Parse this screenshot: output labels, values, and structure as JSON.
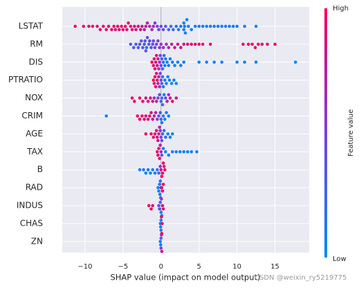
{
  "chart_data": {
    "type": "beeswarm",
    "xlabel": "SHAP value (impact on model output)",
    "xlim": [
      -13,
      19.5
    ],
    "xticks": [
      {
        "value": -10,
        "label": "−10"
      },
      {
        "value": -5,
        "label": "−5"
      },
      0,
      5,
      10,
      15
    ],
    "grid": true,
    "colorbar": {
      "label": "Feature value",
      "high": "High",
      "low": "Low",
      "colormap": [
        "#008bfb",
        "#7a3fe4",
        "#ff0052"
      ]
    },
    "annotation": "CSDN @weixin_ry5219775",
    "series": [
      {
        "name": "LSTAT",
        "values": [
          -11.3,
          -10.2,
          -9.5,
          -9,
          -8.4,
          -8,
          -7.6,
          -7.2,
          -6.9,
          -6.5,
          -6.2,
          -6,
          -5.7,
          -5.5,
          -5.2,
          -5,
          -4.7,
          -4.5,
          -4.3,
          -4,
          -3.8,
          -3.5,
          -3.3,
          -3,
          -2.7,
          -2.5,
          -2.2,
          -2,
          -1.8,
          -1.5,
          -1.2,
          -1,
          -0.8,
          -0.5,
          -0.3,
          0,
          0.3,
          0.6,
          1,
          1.3,
          1.6,
          2,
          2.3,
          2.6,
          3,
          3,
          3.1,
          3.2,
          3.4,
          3.6,
          4,
          4.5,
          5,
          5.5,
          6,
          6.5,
          7,
          7.5,
          8,
          8.5,
          9,
          9.5,
          10,
          11,
          12.5
        ],
        "feature_values": [
          0.95,
          0.95,
          0.9,
          0.95,
          0.9,
          0.92,
          0.95,
          0.88,
          0.9,
          0.92,
          0.95,
          0.9,
          0.88,
          0.85,
          0.92,
          0.9,
          0.9,
          0.88,
          0.85,
          0.9,
          0.86,
          0.85,
          0.88,
          0.8,
          0.82,
          0.78,
          0.8,
          0.75,
          0.7,
          0.72,
          0.65,
          0.6,
          0.55,
          0.5,
          0.5,
          0.45,
          0.4,
          0.35,
          0.3,
          0.25,
          0.2,
          0.2,
          0.15,
          0.12,
          0.1,
          0.05,
          0.08,
          0.1,
          0.05,
          0.1,
          0.08,
          0.1,
          0.05,
          0.1,
          0.05,
          0.08,
          0.05,
          0.1,
          0.05,
          0.05,
          0.08,
          0.05,
          0.05,
          0.05,
          0.02
        ]
      },
      {
        "name": "RM",
        "values": [
          -4,
          -3.6,
          -3.3,
          -3,
          -2.8,
          -2.6,
          -2.4,
          -2.2,
          -2.1,
          -2,
          -1.9,
          -1.8,
          -1.6,
          -1.5,
          -1.3,
          -1.1,
          -1,
          -0.8,
          -0.6,
          -0.4,
          -0.2,
          0,
          0.3,
          0.7,
          1,
          1.4,
          1.8,
          2.2,
          2.6,
          3,
          3.5,
          4,
          4.5,
          5,
          5.5,
          6.5,
          10.8,
          11.5,
          12,
          12.4,
          12.8,
          13.3,
          14,
          15
        ],
        "feature_values": [
          0.3,
          0.35,
          0.3,
          0.25,
          0.4,
          0.3,
          0.35,
          0.4,
          0.3,
          0.38,
          0.2,
          0.42,
          0.35,
          0.45,
          0.4,
          0.38,
          0.45,
          0.5,
          0.45,
          0.5,
          0.55,
          0.6,
          0.6,
          0.65,
          0.7,
          0.75,
          0.8,
          0.82,
          0.85,
          0.85,
          0.88,
          0.9,
          0.9,
          0.92,
          0.9,
          0.95,
          0.95,
          0.95,
          0.97,
          0.95,
          0.95,
          0.97,
          0.95,
          0.98
        ]
      },
      {
        "name": "DIS",
        "values": [
          -1.2,
          -1,
          -0.9,
          -0.8,
          -0.7,
          -0.6,
          -0.5,
          -0.4,
          -0.3,
          -0.2,
          -0.1,
          0,
          0.1,
          0.2,
          0.3,
          0.4,
          0.5,
          0.6,
          0.8,
          1,
          1.2,
          1.5,
          1.8,
          2.2,
          2.6,
          3,
          5,
          6,
          7,
          8,
          10,
          11,
          12.5,
          17.7
        ],
        "feature_values": [
          0.95,
          0.9,
          0.92,
          0.88,
          0.9,
          0.85,
          0.8,
          0.75,
          0.7,
          0.6,
          0.5,
          0.4,
          0.3,
          0.25,
          0.2,
          0.15,
          0.12,
          0.1,
          0.08,
          0.1,
          0.05,
          0.1,
          0.05,
          0.08,
          0.05,
          0.1,
          0.05,
          0.05,
          0.05,
          0.05,
          0.05,
          0.05,
          0.05,
          0.02
        ]
      },
      {
        "name": "PTRATIO",
        "values": [
          -1,
          -0.9,
          -0.8,
          -0.7,
          -0.6,
          -0.5,
          -0.4,
          -0.3,
          -0.2,
          -0.1,
          0,
          0.1,
          0.2,
          0.3,
          0.5,
          0.7,
          0.9,
          1.1,
          1.4,
          1.7,
          2
        ],
        "feature_values": [
          0.95,
          0.9,
          0.92,
          0.9,
          0.88,
          0.85,
          0.8,
          0.7,
          0.6,
          0.5,
          0.4,
          0.3,
          0.2,
          0.15,
          0.1,
          0.1,
          0.05,
          0.08,
          0.05,
          0.05,
          0.05
        ]
      },
      {
        "name": "NOX",
        "values": [
          -3.8,
          -3.5,
          -2.8,
          -2.4,
          -2,
          -1.7,
          -1.4,
          -1.1,
          -0.9,
          -0.6,
          -0.4,
          -0.2,
          0,
          0.1,
          0.2,
          0.4,
          0.6,
          0.8,
          1,
          1.2,
          1.5,
          2
        ],
        "feature_values": [
          0.95,
          0.9,
          0.92,
          0.9,
          0.85,
          0.88,
          0.85,
          0.8,
          0.6,
          0.7,
          0.5,
          0.4,
          0.3,
          0.2,
          0.15,
          0.1,
          0.5,
          0.8,
          0.6,
          0.85,
          0.9,
          0.8
        ]
      },
      {
        "name": "CRIM",
        "values": [
          -7.2,
          -3.1,
          -2.8,
          -2.5,
          -2.2,
          -2,
          -1.7,
          -1.5,
          -1.3,
          -1.1,
          -0.9,
          -0.7,
          -0.5,
          -0.3,
          -0.1,
          0,
          0.1,
          0.3,
          0.5,
          0.7,
          1
        ],
        "feature_values": [
          0.05,
          0.95,
          0.9,
          0.92,
          0.9,
          0.88,
          0.85,
          0.9,
          0.85,
          0.8,
          0.75,
          0.7,
          0.6,
          0.4,
          0.3,
          0.2,
          0.15,
          0.1,
          0.08,
          0.05,
          0.05
        ]
      },
      {
        "name": "AGE",
        "values": [
          -2,
          -1.3,
          -1,
          -0.8,
          -0.6,
          -0.5,
          -0.4,
          -0.3,
          -0.2,
          -0.1,
          0,
          0.1,
          0.2,
          0.4,
          0.6,
          0.9,
          1.2,
          1.5
        ],
        "feature_values": [
          0.95,
          0.9,
          0.92,
          0.88,
          0.9,
          0.85,
          0.8,
          0.75,
          0.7,
          0.6,
          0.5,
          0.4,
          0.3,
          0.2,
          0.15,
          0.1,
          0.05,
          0.05
        ]
      },
      {
        "name": "TAX",
        "values": [
          -0.5,
          -0.4,
          -0.3,
          -0.2,
          -0.1,
          0,
          0.1,
          0.3,
          0.6,
          1,
          1.5,
          2,
          2.5,
          3,
          3.5,
          4,
          4.7
        ],
        "feature_values": [
          0.95,
          0.9,
          0.92,
          0.85,
          0.8,
          0.6,
          0.3,
          0.1,
          0.05,
          0.05,
          0.05,
          0.08,
          0.05,
          0.05,
          0.05,
          0.05,
          0.05
        ]
      },
      {
        "name": "B",
        "values": [
          -2.8,
          -2.3,
          -2,
          -1.7,
          -1.4,
          -1.1,
          -0.8,
          -0.5,
          -0.3,
          -0.1,
          0,
          0.1,
          0.2,
          0.3,
          0.4,
          0.5
        ],
        "feature_values": [
          0.05,
          0.1,
          0.05,
          0.1,
          0.05,
          0.08,
          0.1,
          0.2,
          0.3,
          0.6,
          0.9,
          0.95,
          0.92,
          0.95,
          0.9,
          0.95
        ]
      },
      {
        "name": "RAD",
        "values": [
          -0.4,
          -0.3,
          -0.2,
          -0.15,
          -0.1,
          -0.05,
          0,
          0.05,
          0.1,
          0.2,
          0.3
        ],
        "feature_values": [
          0.05,
          0.1,
          0.1,
          0.15,
          0.2,
          0.3,
          0.5,
          0.8,
          0.9,
          0.92,
          0.95
        ]
      },
      {
        "name": "INDUS",
        "values": [
          -1.6,
          -1.3,
          -1.1,
          -0.3,
          -0.2,
          -0.1,
          0,
          0.05,
          0.1,
          0.2,
          0.3
        ],
        "feature_values": [
          0.95,
          0.92,
          0.9,
          0.5,
          0.3,
          0.2,
          0.15,
          0.6,
          0.1,
          0.8,
          0.9
        ]
      },
      {
        "name": "CHAS",
        "values": [
          -0.1,
          -0.05,
          0,
          0,
          0.05,
          0.1,
          0.15
        ],
        "feature_values": [
          0.05,
          0.05,
          0.05,
          0.1,
          0.9,
          0.95,
          0.95
        ]
      },
      {
        "name": "ZN",
        "values": [
          -0.1,
          -0.05,
          0,
          0,
          0.05,
          0.1
        ],
        "feature_values": [
          0.05,
          0.1,
          0.2,
          0.5,
          0.8,
          0.9
        ]
      }
    ]
  }
}
